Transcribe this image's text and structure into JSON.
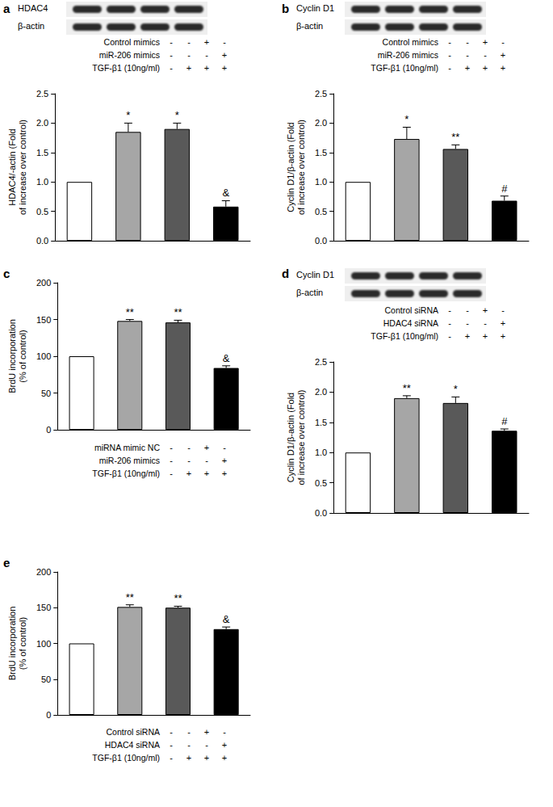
{
  "chart_data": [
    {
      "panel": "a",
      "type": "bar",
      "blot": [
        "HDAC4",
        "β-actin"
      ],
      "treatments": [
        {
          "label": "Control mimics",
          "signs": [
            "-",
            "-",
            "+",
            "-"
          ]
        },
        {
          "label": "miR-206  mimics",
          "signs": [
            "-",
            "-",
            "-",
            "+"
          ]
        },
        {
          "label": "TGF-β1 (10ng/ml)",
          "signs": [
            "-",
            "+",
            "+",
            "+"
          ]
        }
      ],
      "ylabel": "HDAC4/-actin (Fold\nof increase over control)",
      "categories": [
        null,
        null,
        null,
        null
      ],
      "values": [
        1.0,
        1.85,
        1.9,
        0.58
      ],
      "errors": [
        null,
        0.15,
        0.1,
        0.1
      ],
      "marks": [
        null,
        "*",
        "*",
        "&"
      ],
      "colors": [
        "#ffffff",
        "#a6a6a6",
        "#595959",
        "#000000"
      ],
      "ylim": [
        0,
        2.5
      ],
      "yticks": [
        {
          "value": 0,
          "label": "0.0"
        },
        {
          "value": 0.5,
          "label": "0.5"
        },
        {
          "value": 1,
          "label": "1.0"
        },
        {
          "value": 1.5,
          "label": "1.5"
        },
        {
          "value": 2,
          "label": "2.0"
        },
        {
          "value": 2.5,
          "label": "2.5"
        }
      ]
    },
    {
      "panel": "b",
      "type": "bar",
      "blot": [
        "Cyclin D1",
        "β-actin"
      ],
      "treatments": [
        {
          "label": "Control mimics",
          "signs": [
            "-",
            "-",
            "+",
            "-"
          ]
        },
        {
          "label": "miR-206  mimics",
          "signs": [
            "-",
            "-",
            "-",
            "+"
          ]
        },
        {
          "label": "TGF-β1 (10ng/ml)",
          "signs": [
            "-",
            "+",
            "+",
            "+"
          ]
        }
      ],
      "ylabel": "Cyclin D1/β-actin (Fold\nof increase over control)",
      "categories": [
        null,
        null,
        null,
        null
      ],
      "values": [
        1.0,
        1.73,
        1.56,
        0.68
      ],
      "errors": [
        null,
        0.2,
        0.07,
        0.08
      ],
      "marks": [
        null,
        "*",
        "**",
        "#"
      ],
      "colors": [
        "#ffffff",
        "#a6a6a6",
        "#595959",
        "#000000"
      ],
      "ylim": [
        0,
        2.5
      ],
      "yticks": [
        {
          "value": 0,
          "label": "0.0"
        },
        {
          "value": 0.5,
          "label": "0.5"
        },
        {
          "value": 1,
          "label": "1.0"
        },
        {
          "value": 1.5,
          "label": "1.5"
        },
        {
          "value": 2,
          "label": "2.0"
        },
        {
          "value": 2.5,
          "label": "2.5"
        }
      ]
    },
    {
      "panel": "c",
      "type": "bar",
      "treatments": [
        {
          "label": "miRNA mimic NC",
          "signs": [
            "-",
            "-",
            "+",
            "-"
          ]
        },
        {
          "label": "miR-206  mimics",
          "signs": [
            "-",
            "-",
            "-",
            "+"
          ]
        },
        {
          "label": "TGF-β1 (10ng/ml)",
          "signs": [
            "-",
            "+",
            "+",
            "+"
          ]
        }
      ],
      "ylabel": "BrdU incorporation\n(% of control)",
      "categories": [
        null,
        null,
        null,
        null
      ],
      "values": [
        100,
        148,
        146,
        84
      ],
      "errors": [
        null,
        2,
        3,
        3
      ],
      "marks": [
        null,
        "**",
        "**",
        "&"
      ],
      "colors": [
        "#ffffff",
        "#a6a6a6",
        "#595959",
        "#000000"
      ],
      "ylim": [
        0,
        200
      ],
      "yticks": [
        0,
        50,
        100,
        150,
        200
      ]
    },
    {
      "panel": "d",
      "type": "bar",
      "blot": [
        "Cyclin D1",
        "β-actin"
      ],
      "treatments": [
        {
          "label": "Control siRNA",
          "signs": [
            "-",
            "-",
            "+",
            "-"
          ]
        },
        {
          "label": "HDAC4 siRNA",
          "signs": [
            "-",
            "-",
            "-",
            "+"
          ]
        },
        {
          "label": "TGF-β1 (10ng/ml)",
          "signs": [
            "-",
            "+",
            "+",
            "+"
          ]
        }
      ],
      "ylabel": "Cyclin D1/β-actin (Fold\nof increase over control)",
      "categories": [
        null,
        null,
        null,
        null
      ],
      "values": [
        1.0,
        1.9,
        1.82,
        1.36
      ],
      "errors": [
        null,
        0.04,
        0.1,
        0.03
      ],
      "marks": [
        null,
        "**",
        "*",
        "#"
      ],
      "colors": [
        "#ffffff",
        "#a6a6a6",
        "#595959",
        "#000000"
      ],
      "ylim": [
        0,
        2.5
      ],
      "yticks": [
        {
          "value": 0,
          "label": "0.0"
        },
        {
          "value": 0.5,
          "label": "0.5"
        },
        {
          "value": 1,
          "label": "1.0"
        },
        {
          "value": 1.5,
          "label": "1.5"
        },
        {
          "value": 2,
          "label": "2.0"
        },
        {
          "value": 2.5,
          "label": "2.5"
        }
      ]
    },
    {
      "panel": "e",
      "type": "bar",
      "treatments": [
        {
          "label": "Control siRNA",
          "signs": [
            "-",
            "-",
            "+",
            "-"
          ]
        },
        {
          "label": "HDAC4 siRNA",
          "signs": [
            "-",
            "-",
            "-",
            "+"
          ]
        },
        {
          "label": "TGF-β1 (10ng/ml)",
          "signs": [
            "-",
            "+",
            "+",
            "+"
          ]
        }
      ],
      "ylabel": "BrdU incorporation\n(% of control)",
      "categories": [
        null,
        null,
        null,
        null
      ],
      "values": [
        100,
        151,
        150,
        120
      ],
      "errors": [
        null,
        3,
        2,
        3
      ],
      "marks": [
        null,
        "**",
        "**",
        "&"
      ],
      "colors": [
        "#ffffff",
        "#a6a6a6",
        "#595959",
        "#000000"
      ],
      "ylim": [
        0,
        200
      ],
      "yticks": [
        0,
        50,
        100,
        150,
        200
      ]
    }
  ]
}
